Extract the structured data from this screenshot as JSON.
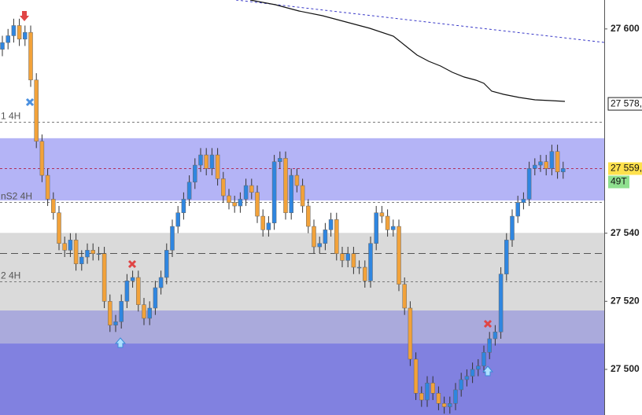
{
  "chart_data": {
    "type": "candlestick",
    "ylim": [
      27486.6,
      27608.5
    ],
    "yticks": [
      {
        "value": 27600,
        "label": "27 600"
      },
      {
        "value": 27540,
        "label": "27 540"
      },
      {
        "value": 27520,
        "label": "27 520"
      },
      {
        "value": 27500,
        "label": "27 500"
      }
    ],
    "up_color": "#2f86e0",
    "down_color": "#f2a23a",
    "open": [
      27594,
      27596,
      27598,
      27601,
      27597,
      27599,
      27585,
      27567,
      27557,
      27550,
      27546,
      27537,
      27535,
      27538,
      27531,
      27533,
      27535,
      27534,
      27534,
      27520,
      27513,
      27514,
      27520,
      27526,
      27527,
      27519,
      27515,
      27518,
      27524,
      27527,
      27535,
      27542,
      27546,
      27550,
      27555,
      27560,
      27563,
      27559,
      27563,
      27556,
      27551,
      27549,
      27548,
      27550,
      27554,
      27552,
      27545,
      27541,
      27543,
      27561,
      27562,
      27546,
      27557,
      27554,
      27548,
      27542,
      27536,
      27537,
      27541,
      27544,
      27534,
      27532,
      27534,
      27530,
      27530,
      27526,
      27537,
      27546,
      27545,
      27541,
      27542,
      27525,
      27518,
      27503,
      27493,
      27491,
      27496,
      27493,
      27490,
      27489,
      27490,
      27494,
      27497,
      27498,
      27500,
      27501,
      27505,
      27509,
      27511,
      27528,
      27538,
      27545,
      27549,
      27550,
      27559,
      27560,
      27561,
      27559,
      27564,
      27558
    ],
    "high": [
      27598,
      27600,
      27603,
      27603,
      27601,
      27601,
      27587,
      27569,
      27559,
      27552,
      27548,
      27539,
      27540,
      27540,
      27535,
      27537,
      27537,
      27536,
      27536,
      27522,
      27516,
      27522,
      27528,
      27529,
      27529,
      27521,
      27520,
      27526,
      27529,
      27537,
      27544,
      27548,
      27552,
      27557,
      27562,
      27565,
      27565,
      27565,
      27565,
      27558,
      27553,
      27551,
      27552,
      27556,
      27556,
      27554,
      27547,
      27545,
      27563,
      27564,
      27564,
      27559,
      27559,
      27556,
      27550,
      27544,
      27539,
      27543,
      27546,
      27546,
      27536,
      27536,
      27536,
      27532,
      27532,
      27539,
      27548,
      27548,
      27547,
      27544,
      27544,
      27527,
      27520,
      27505,
      27495,
      27498,
      27498,
      27495,
      27492,
      27492,
      27496,
      27499,
      27500,
      27502,
      27503,
      27507,
      27511,
      27513,
      27530,
      27540,
      27547,
      27551,
      27552,
      27561,
      27562,
      27563,
      27563,
      27566,
      27566,
      27561
    ],
    "low": [
      27592,
      27594,
      27596,
      27595,
      27595,
      27583,
      27565,
      27555,
      27548,
      27544,
      27535,
      27533,
      27533,
      27529,
      27529,
      27531,
      27532,
      27532,
      27518,
      27511,
      27511,
      27512,
      27518,
      27524,
      27517,
      27513,
      27513,
      27516,
      27522,
      27525,
      27533,
      27540,
      27544,
      27548,
      27553,
      27558,
      27557,
      27557,
      27554,
      27549,
      27547,
      27546,
      27546,
      27548,
      27550,
      27543,
      27539,
      27539,
      27541,
      27559,
      27544,
      27544,
      27552,
      27546,
      27540,
      27534,
      27534,
      27535,
      27539,
      27532,
      27530,
      27530,
      27528,
      27528,
      27524,
      27524,
      27535,
      27543,
      27539,
      27539,
      27523,
      27516,
      27501,
      27491,
      27489,
      27489,
      27491,
      27488,
      27487,
      27487,
      27488,
      27492,
      27495,
      27496,
      27498,
      27499,
      27503,
      27507,
      27509,
      27526,
      27536,
      27543,
      27547,
      27548,
      27557,
      27558,
      27557,
      27557,
      27556,
      27556
    ],
    "close": [
      27596,
      27598,
      27601,
      27597,
      27599,
      27585,
      27567,
      27557,
      27550,
      27546,
      27537,
      27535,
      27538,
      27531,
      27533,
      27535,
      27534,
      27534,
      27520,
      27513,
      27514,
      27520,
      27526,
      27527,
      27519,
      27515,
      27518,
      27524,
      27527,
      27535,
      27542,
      27546,
      27550,
      27555,
      27560,
      27563,
      27559,
      27563,
      27556,
      27551,
      27549,
      27548,
      27550,
      27554,
      27552,
      27545,
      27541,
      27543,
      27561,
      27562,
      27546,
      27557,
      27554,
      27548,
      27542,
      27536,
      27537,
      27541,
      27544,
      27534,
      27532,
      27534,
      27530,
      27530,
      27526,
      27537,
      27546,
      27545,
      27541,
      27542,
      27525,
      27518,
      27503,
      27493,
      27491,
      27496,
      27493,
      27490,
      27489,
      27490,
      27494,
      27497,
      27498,
      27500,
      27501,
      27505,
      27509,
      27511,
      27528,
      27538,
      27545,
      27549,
      27550,
      27559,
      27560,
      27561,
      27559,
      27564,
      27558,
      27559
    ],
    "zones": [
      {
        "from": 27567.9,
        "to": 27549.6,
        "color": "#b4b4f6"
      },
      {
        "from": 27540.1,
        "to": 27517.3,
        "color": "#dadada"
      },
      {
        "from": 27517.3,
        "to": 27507.6,
        "color": "#aaaadc"
      },
      {
        "from": 27507.6,
        "to": 27486.6,
        "color": "#8181e0"
      }
    ],
    "levels": [
      {
        "value": 27572.7,
        "label": "1 4H"
      },
      {
        "value": 27549.1,
        "label": "nS2 4H"
      },
      {
        "value": 27534.1
      },
      {
        "value": 27525.8,
        "label": "2 4H"
      }
    ],
    "price_marker": {
      "value": 27578,
      "label": "27 578,"
    },
    "current_price": {
      "value": 27559,
      "label": "27 559,"
    },
    "countdown": "49T"
  }
}
